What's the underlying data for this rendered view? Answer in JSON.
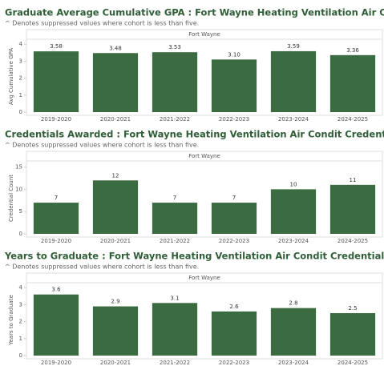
{
  "chart_data": [
    {
      "type": "bar",
      "title": "Graduate Average Cumulative GPA : Fort Wayne Heating Ventilation Air Condit Credentials",
      "subtitle": "^ Denotes suppressed values where cohort is less than five.",
      "panel_label": "Fort Wayne",
      "y_label": "Avg Cumulative GPA",
      "categories": [
        "2019-2020",
        "2020-2021",
        "2021-2022",
        "2022-2023",
        "2023-2024",
        "2024-2025"
      ],
      "values": [
        3.58,
        3.48,
        3.53,
        3.1,
        3.59,
        3.36
      ],
      "value_labels": [
        "3.58",
        "3.48",
        "3.53",
        "3.10",
        "3.59",
        "3.36"
      ],
      "color": "#3a6b41",
      "ylim": [
        0,
        4.2
      ],
      "yticks": [
        0,
        1,
        2,
        3,
        4
      ]
    },
    {
      "type": "bar",
      "title": "Credentials Awarded : Fort Wayne Heating Ventilation Air Condit Credentials",
      "subtitle": "^ Denotes suppressed values where cohort is less than five.",
      "panel_label": "Fort Wayne",
      "y_label": "Credential Count",
      "categories": [
        "2019-2020",
        "2020-2021",
        "2021-2022",
        "2022-2023",
        "2023-2024",
        "2024-2025"
      ],
      "values": [
        7,
        12,
        7,
        7,
        10,
        11
      ],
      "color": "#3a6b41",
      "ylim": [
        0,
        16
      ],
      "yticks": [
        0,
        5,
        10,
        15
      ]
    },
    {
      "type": "bar",
      "title": "Years to Graduate : Fort Wayne Heating Ventilation Air Condit Credentials",
      "subtitle": "^ Denotes suppressed values where cohort is less than five.",
      "panel_label": "Fort Wayne",
      "y_label": "Years to Graduate",
      "categories": [
        "2019-2020",
        "2020-2021",
        "2021-2022",
        "2022-2023",
        "2023-2024",
        "2024-2025"
      ],
      "values": [
        3.6,
        2.9,
        3.1,
        2.6,
        2.8,
        2.5
      ],
      "color": "#3a6b41",
      "ylim": [
        0,
        4.2
      ],
      "yticks": [
        0,
        1,
        2,
        3,
        4
      ]
    }
  ]
}
